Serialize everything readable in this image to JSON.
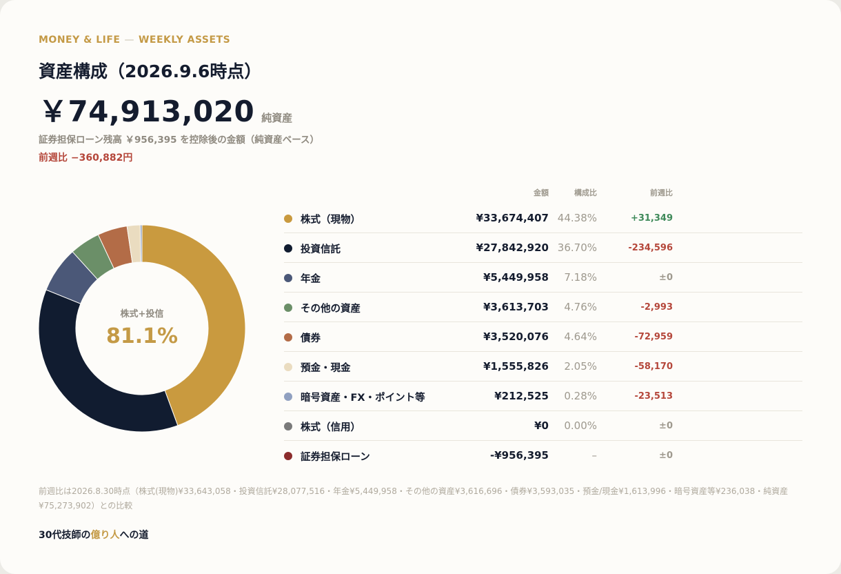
{
  "header": {
    "kicker_left": "MONEY & LIFE",
    "kicker_sep": "—",
    "kicker_right": "WEEKLY ASSETS",
    "title": "資産構成（2026.9.6時点）",
    "net_amount": "￥74,913,020",
    "net_label": "純資産",
    "note": "証券担保ローン残高 ￥956,395 を控除後の金額（純資産ベース）",
    "week_change": "前週比 −360,882円"
  },
  "center": {
    "label": "株式+投信",
    "value": "81.1%"
  },
  "table": {
    "headers": {
      "amount": "金額",
      "ratio": "構成比",
      "change": "前週比"
    },
    "rows": [
      {
        "name": "株式（現物）",
        "amount": "¥33,674,407",
        "ratio": "44.38%",
        "change": "+31,349",
        "trend": "pos",
        "color": "#c99a3f"
      },
      {
        "name": "投資信託",
        "amount": "¥27,842,920",
        "ratio": "36.70%",
        "change": "-234,596",
        "trend": "neg",
        "color": "#111c30"
      },
      {
        "name": "年金",
        "amount": "¥5,449,958",
        "ratio": "7.18%",
        "change": "±0",
        "trend": "flat",
        "color": "#4b5878"
      },
      {
        "name": "その他の資産",
        "amount": "¥3,613,703",
        "ratio": "4.76%",
        "change": "-2,993",
        "trend": "neg",
        "color": "#6b8f68"
      },
      {
        "name": "債券",
        "amount": "¥3,520,076",
        "ratio": "4.64%",
        "change": "-72,959",
        "trend": "neg",
        "color": "#b36c47"
      },
      {
        "name": "預金・現金",
        "amount": "¥1,555,826",
        "ratio": "2.05%",
        "change": "-58,170",
        "trend": "neg",
        "color": "#eadcc0"
      },
      {
        "name": "暗号資産・FX・ポイント等",
        "amount": "¥212,525",
        "ratio": "0.28%",
        "change": "-23,513",
        "trend": "neg",
        "color": "#90a0c0"
      },
      {
        "name": "株式（信用）",
        "amount": "¥0",
        "ratio": "0.00%",
        "change": "±0",
        "trend": "flat",
        "color": "#7a7a7a"
      },
      {
        "name": "証券担保ローン",
        "amount": "-¥956,395",
        "ratio": "–",
        "change": "±0",
        "trend": "flat",
        "color": "#8b2c2c"
      }
    ]
  },
  "chart_data": {
    "type": "pie",
    "categories": [
      "株式（現物）",
      "投資信託",
      "年金",
      "その他の資産",
      "債券",
      "預金・現金",
      "暗号資産・FX・ポイント等",
      "株式（信用）"
    ],
    "values": [
      44.38,
      36.7,
      7.18,
      4.76,
      4.64,
      2.05,
      0.28,
      0.0
    ],
    "colors": [
      "#c99a3f",
      "#111c30",
      "#4b5878",
      "#6b8f68",
      "#b36c47",
      "#eadcc0",
      "#90a0c0",
      "#7a7a7a"
    ]
  },
  "footnote": "前週比は2026.8.30時点（株式(現物)¥33,643,058・投資信託¥28,077,516・年金¥5,449,958・その他の資産¥3,616,696・債券¥3,593,035・預金/現金¥1,613,996・暗号資産等¥236,038・純資産¥75,273,902）との比較",
  "brand": {
    "prefix": "30代技師の",
    "highlight": "億り人",
    "suffix": "への道"
  }
}
